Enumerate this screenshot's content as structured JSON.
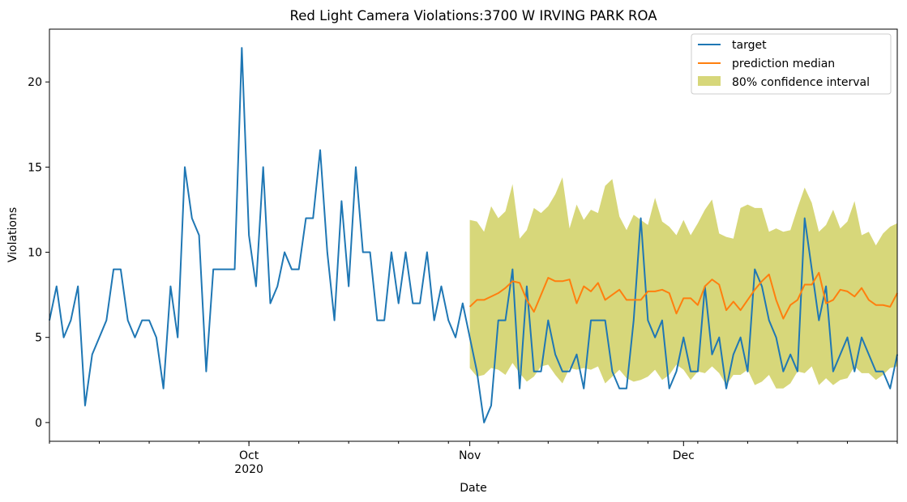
{
  "chart_data": {
    "type": "line",
    "title": "Red Light Camera Violations:3700 W IRVING PARK ROA",
    "xlabel": "Date",
    "ylabel": "Violations",
    "x_start": "2020-09-03",
    "x_end": "2020-12-31",
    "ylim": [
      -1.1,
      23.1
    ],
    "yticks": [
      0,
      5,
      10,
      15,
      20
    ],
    "xticks": [
      {
        "date": "2020-10-01",
        "label": "Oct",
        "sublabel": "2020"
      },
      {
        "date": "2020-11-01",
        "label": "Nov",
        "sublabel": ""
      },
      {
        "date": "2020-12-01",
        "label": "Dec",
        "sublabel": ""
      }
    ],
    "legend_position": "upper-right",
    "series": [
      {
        "name": "target",
        "color": "#1f77b4",
        "start_date": "2020-09-03",
        "values": [
          6,
          8,
          5,
          6,
          8,
          1,
          4,
          5,
          6,
          9,
          9,
          6,
          5,
          6,
          6,
          5,
          2,
          8,
          5,
          15,
          12,
          11,
          3,
          9,
          9,
          9,
          9,
          22,
          11,
          8,
          15,
          7,
          8,
          10,
          9,
          9,
          12,
          12,
          16,
          10,
          6,
          13,
          8,
          15,
          10,
          10,
          6,
          6,
          10,
          7,
          10,
          7,
          7,
          10,
          6,
          8,
          6,
          5,
          7,
          5,
          3,
          0,
          1,
          6,
          6,
          9,
          2,
          8,
          3,
          3,
          6,
          4,
          3,
          3,
          4,
          2,
          6,
          6,
          6,
          3,
          2,
          2,
          6,
          12,
          6,
          5,
          6,
          2,
          3,
          5,
          3,
          3,
          8,
          4,
          5,
          2,
          4,
          5,
          3,
          9,
          8,
          6,
          5,
          3,
          4,
          3,
          12,
          9,
          6,
          8,
          3,
          4,
          5,
          3,
          5,
          4,
          3,
          3,
          2,
          4
        ]
      },
      {
        "name": "prediction median",
        "color": "#ff7f0e",
        "start_date": "2020-11-01",
        "values": [
          6.8,
          7.2,
          7.2,
          7.4,
          7.6,
          7.9,
          8.3,
          8.2,
          7.2,
          6.5,
          7.5,
          8.5,
          8.3,
          8.3,
          8.4,
          7.0,
          8.0,
          7.7,
          8.2,
          7.2,
          7.5,
          7.8,
          7.2,
          7.2,
          7.2,
          7.7,
          7.7,
          7.8,
          7.6,
          6.4,
          7.3,
          7.3,
          6.9,
          8.0,
          8.4,
          8.1,
          6.6,
          7.1,
          6.6,
          7.2,
          7.8,
          8.3,
          8.7,
          7.2,
          6.1,
          6.9,
          7.2,
          8.1,
          8.1,
          8.8,
          7.0,
          7.2,
          7.8,
          7.7,
          7.4,
          7.9,
          7.2,
          6.9,
          6.9,
          6.8,
          7.6
        ]
      }
    ],
    "confidence_interval": {
      "name": "80% confidence interval",
      "color": "#bcbd22",
      "alpha": 0.6,
      "start_date": "2020-11-01",
      "upper": [
        11.9,
        11.8,
        11.2,
        12.7,
        12.0,
        12.4,
        14.0,
        10.8,
        11.3,
        12.6,
        12.3,
        12.7,
        13.4,
        14.4,
        11.4,
        12.8,
        11.9,
        12.5,
        12.3,
        13.9,
        14.3,
        12.1,
        11.3,
        12.2,
        11.9,
        11.6,
        13.2,
        11.8,
        11.5,
        11.0,
        11.9,
        11.0,
        11.7,
        12.5,
        13.1,
        11.1,
        10.9,
        10.8,
        12.6,
        12.8,
        12.6,
        12.6,
        11.2,
        11.4,
        11.2,
        11.3,
        12.6,
        13.8,
        12.9,
        11.2,
        11.6,
        12.5,
        11.4,
        11.8,
        13.0,
        11.0,
        11.2,
        10.4,
        11.1,
        11.5,
        11.7
      ],
      "lower": [
        3.2,
        2.7,
        2.8,
        3.2,
        3.1,
        2.8,
        3.5,
        2.9,
        2.4,
        2.7,
        3.3,
        3.4,
        2.8,
        2.3,
        3.2,
        3.1,
        3.2,
        3.1,
        3.3,
        2.3,
        2.7,
        3.1,
        2.6,
        2.4,
        2.5,
        2.7,
        3.1,
        2.5,
        2.8,
        3.4,
        3.1,
        2.5,
        3.0,
        2.9,
        3.3,
        2.9,
        2.2,
        2.8,
        2.8,
        3.1,
        2.2,
        2.4,
        2.8,
        2.0,
        2.0,
        2.3,
        3.0,
        2.9,
        3.3,
        2.2,
        2.6,
        2.2,
        2.5,
        2.6,
        3.3,
        2.9,
        2.9,
        2.5,
        2.8,
        3.2,
        3.3
      ]
    }
  }
}
